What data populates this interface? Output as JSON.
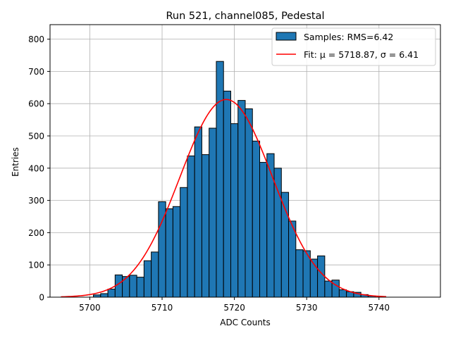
{
  "chart_data": {
    "type": "bar",
    "title": "Run 521, channel085, Pedestal",
    "xlabel": "ADC Counts",
    "ylabel": "Entries",
    "xlim": [
      5694.5,
      5748.5
    ],
    "ylim": [
      0,
      845
    ],
    "xticks": [
      5700,
      5710,
      5720,
      5730,
      5740
    ],
    "yticks": [
      0,
      100,
      200,
      300,
      400,
      500,
      600,
      700,
      800
    ],
    "grid": true,
    "legend_position": "top-right",
    "bar_color": "#1f77b4",
    "fit_color": "#ff0000",
    "histogram": {
      "name": "Samples: RMS=6.42",
      "bin_width": 1,
      "bins": [
        {
          "x": 5701,
          "y": 7
        },
        {
          "x": 5702,
          "y": 11
        },
        {
          "x": 5703,
          "y": 25
        },
        {
          "x": 5704,
          "y": 69
        },
        {
          "x": 5705,
          "y": 64
        },
        {
          "x": 5706,
          "y": 68
        },
        {
          "x": 5707,
          "y": 62
        },
        {
          "x": 5708,
          "y": 113
        },
        {
          "x": 5709,
          "y": 140
        },
        {
          "x": 5710,
          "y": 296
        },
        {
          "x": 5711,
          "y": 274
        },
        {
          "x": 5712,
          "y": 281
        },
        {
          "x": 5713,
          "y": 340
        },
        {
          "x": 5714,
          "y": 438
        },
        {
          "x": 5715,
          "y": 528
        },
        {
          "x": 5716,
          "y": 442
        },
        {
          "x": 5717,
          "y": 524
        },
        {
          "x": 5718,
          "y": 731
        },
        {
          "x": 5719,
          "y": 639
        },
        {
          "x": 5720,
          "y": 538
        },
        {
          "x": 5721,
          "y": 610
        },
        {
          "x": 5722,
          "y": 584
        },
        {
          "x": 5723,
          "y": 484
        },
        {
          "x": 5724,
          "y": 418
        },
        {
          "x": 5725,
          "y": 445
        },
        {
          "x": 5726,
          "y": 400
        },
        {
          "x": 5727,
          "y": 325
        },
        {
          "x": 5728,
          "y": 236
        },
        {
          "x": 5729,
          "y": 147
        },
        {
          "x": 5730,
          "y": 144
        },
        {
          "x": 5731,
          "y": 118
        },
        {
          "x": 5732,
          "y": 128
        },
        {
          "x": 5733,
          "y": 50
        },
        {
          "x": 5734,
          "y": 53
        },
        {
          "x": 5735,
          "y": 23
        },
        {
          "x": 5736,
          "y": 17
        },
        {
          "x": 5737,
          "y": 15
        },
        {
          "x": 5738,
          "y": 8
        },
        {
          "x": 5739,
          "y": 4
        }
      ]
    },
    "fit": {
      "name": "Fit: μ = 5718.87, σ = 6.41",
      "mu": 5718.87,
      "sigma": 6.41,
      "amplitude": 613,
      "x_range": [
        5696,
        5741
      ]
    }
  }
}
